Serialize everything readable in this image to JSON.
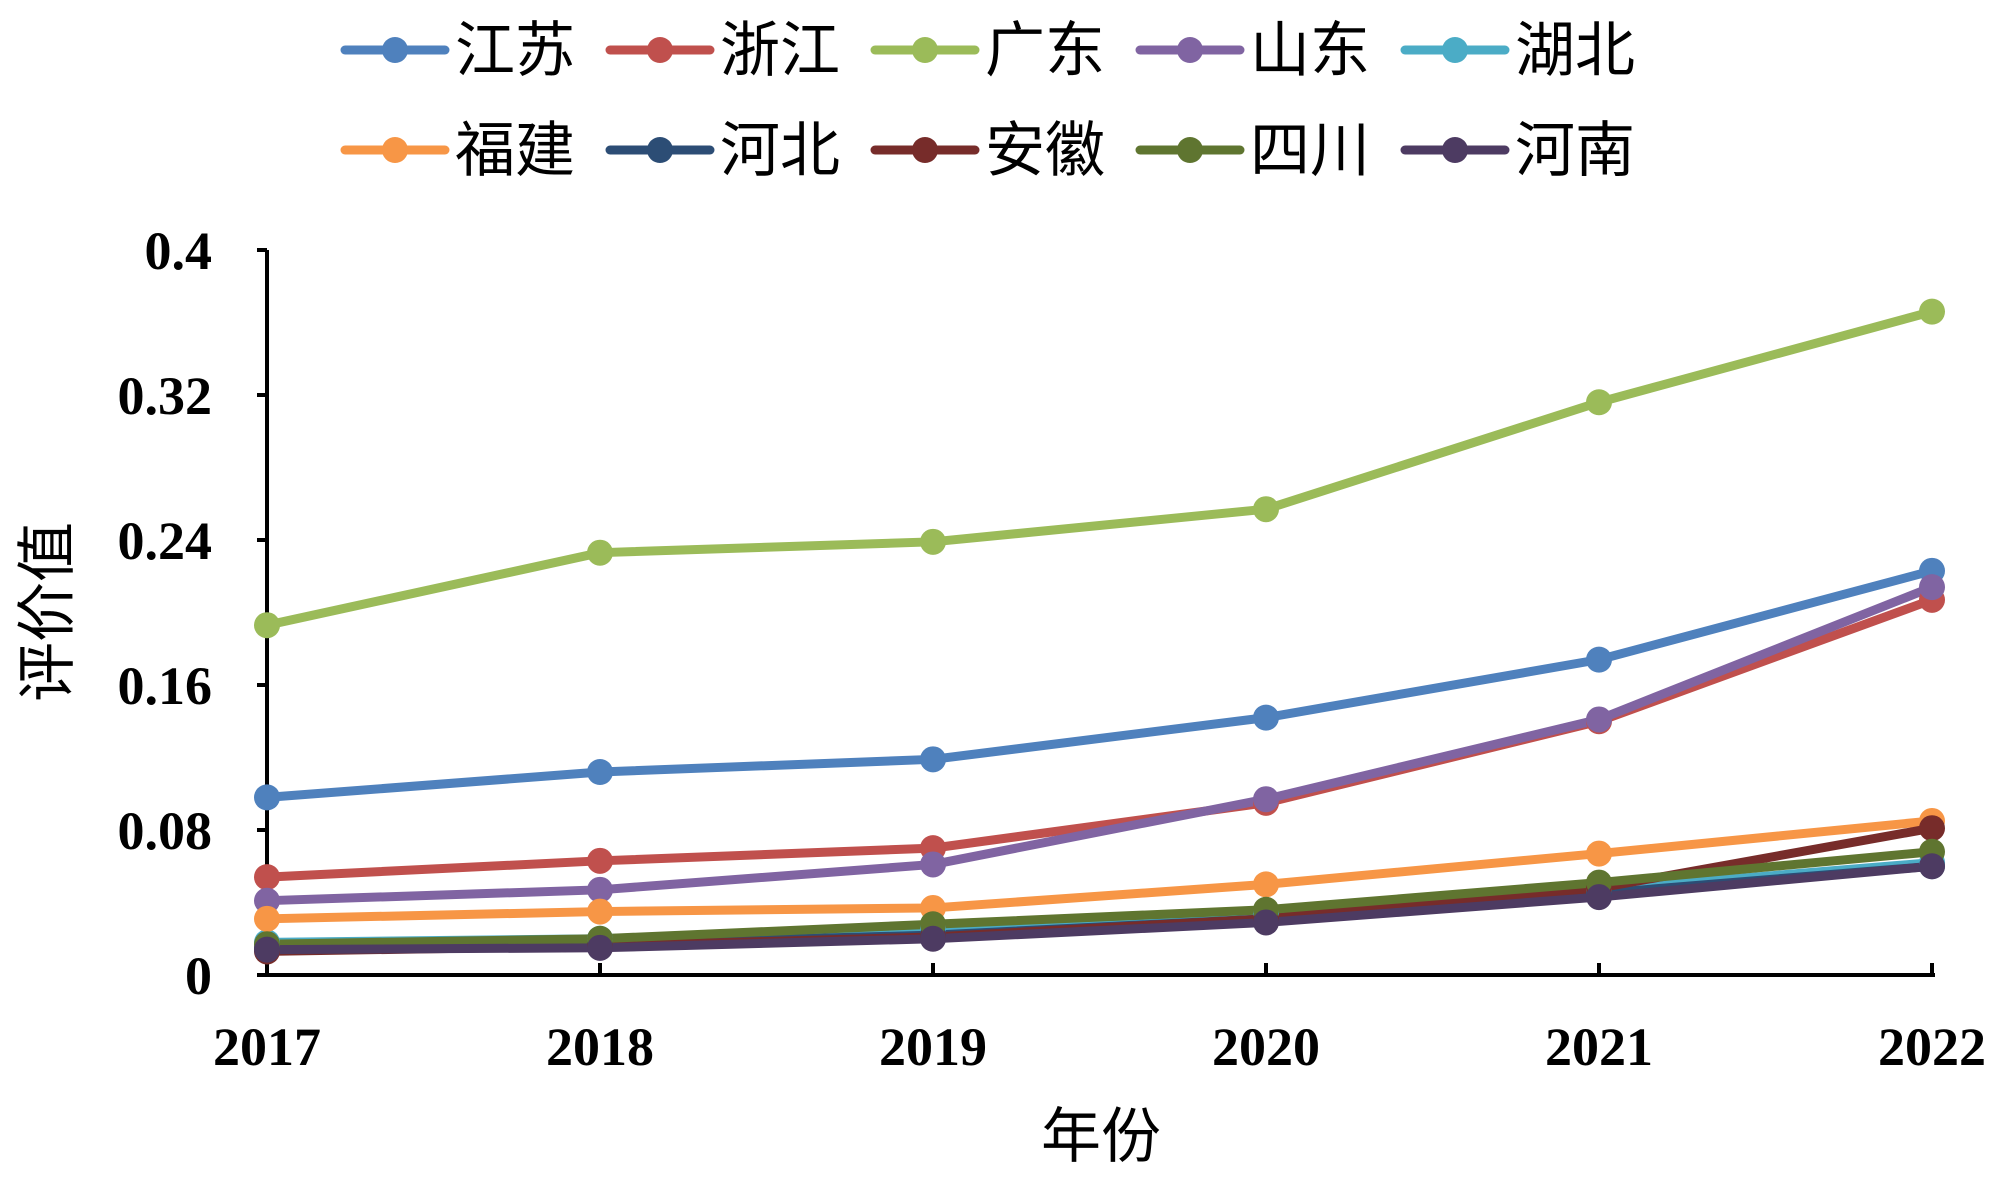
{
  "chart_data": {
    "type": "line",
    "title": "",
    "xlabel": "年份",
    "ylabel": "评价值",
    "categories": [
      "2017",
      "2018",
      "2019",
      "2020",
      "2021",
      "2022"
    ],
    "ylim": [
      0,
      0.4
    ],
    "yticks": [
      0,
      0.08,
      0.16,
      0.24,
      0.32,
      0.4
    ],
    "ytick_labels": [
      "0",
      "0.08",
      "0.16",
      "0.24",
      "0.32",
      "0.4"
    ],
    "grid": false,
    "legend": "top",
    "series": [
      {
        "name": "江苏",
        "color": "#4f81bd",
        "values": [
          0.098,
          0.112,
          0.119,
          0.142,
          0.174,
          0.223
        ]
      },
      {
        "name": "浙江",
        "color": "#c0504d",
        "values": [
          0.054,
          0.063,
          0.07,
          0.095,
          0.14,
          0.207
        ]
      },
      {
        "name": "广东",
        "color": "#9bbb59",
        "values": [
          0.193,
          0.233,
          0.239,
          0.257,
          0.316,
          0.366
        ]
      },
      {
        "name": "山东",
        "color": "#8064a2",
        "values": [
          0.041,
          0.047,
          0.061,
          0.097,
          0.141,
          0.214
        ]
      },
      {
        "name": "湖北",
        "color": "#4bacc6",
        "values": [
          0.018,
          0.02,
          0.026,
          0.034,
          0.047,
          0.062
        ]
      },
      {
        "name": "福建",
        "color": "#f79646",
        "values": [
          0.031,
          0.035,
          0.037,
          0.05,
          0.067,
          0.085
        ]
      },
      {
        "name": "河北",
        "color": "#2c4d75",
        "values": [
          0.015,
          0.017,
          0.022,
          0.031,
          0.045,
          0.06
        ]
      },
      {
        "name": "安徽",
        "color": "#772c2a",
        "values": [
          0.013,
          0.016,
          0.021,
          0.031,
          0.048,
          0.081
        ]
      },
      {
        "name": "四川",
        "color": "#5f7530",
        "values": [
          0.017,
          0.02,
          0.028,
          0.036,
          0.051,
          0.068
        ]
      },
      {
        "name": "河南",
        "color": "#4d3b62",
        "values": [
          0.014,
          0.015,
          0.02,
          0.029,
          0.043,
          0.06
        ]
      }
    ]
  }
}
